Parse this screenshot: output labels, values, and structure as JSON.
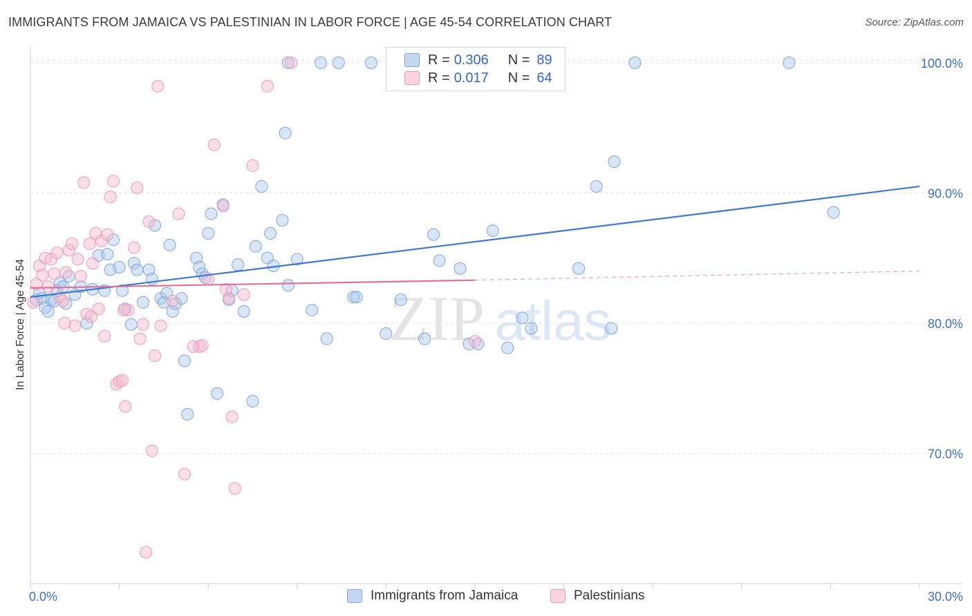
{
  "title": "IMMIGRANTS FROM JAMAICA VS PALESTINIAN IN LABOR FORCE | AGE 45-54 CORRELATION CHART",
  "source": "Source: ZipAtlas.com",
  "watermark": {
    "zip": "ZIP",
    "atlas": "atlas"
  },
  "legend": {
    "r_label": "R =",
    "n_label": "N =",
    "series": [
      {
        "name": "Immigrants from Jamaica",
        "r": "0.306",
        "n": "89",
        "fill": "#a9c7ef",
        "stroke": "#7fa6dd"
      },
      {
        "name": "Palestinians",
        "r": "0.017",
        "n": "64",
        "fill": "#f6b9cc",
        "stroke": "#ee9ab4"
      }
    ]
  },
  "chart_data": {
    "type": "scatter",
    "title": "IMMIGRANTS FROM JAMAICA VS PALESTINIAN IN LABOR FORCE | AGE 45-54 CORRELATION CHART",
    "xlabel": "",
    "ylabel": "In Labor Force | Age 45-54",
    "xlim": [
      0,
      30
    ],
    "ylim": [
      60,
      101
    ],
    "x_tick_labels": [
      "0.0%",
      "30.0%"
    ],
    "y_ticks": [
      70,
      80,
      90,
      100
    ],
    "y_tick_labels": [
      "70.0%",
      "80.0%",
      "90.0%",
      "100.0%"
    ],
    "grid": true,
    "series": [
      {
        "name": "Immigrants from Jamaica",
        "color": "#3a78d4",
        "trend": {
          "x": [
            0,
            30
          ],
          "y": [
            82.0,
            90.5
          ],
          "style": "solid"
        },
        "points": [
          [
            0.2,
            81.8
          ],
          [
            0.3,
            82.3
          ],
          [
            0.4,
            81.9
          ],
          [
            0.5,
            81.2
          ],
          [
            0.6,
            80.9
          ],
          [
            0.7,
            81.8
          ],
          [
            0.8,
            81.7
          ],
          [
            0.9,
            82.5
          ],
          [
            1.0,
            83.1
          ],
          [
            1.1,
            82.8
          ],
          [
            1.2,
            81.5
          ],
          [
            1.3,
            83.6
          ],
          [
            1.5,
            82.2
          ],
          [
            1.7,
            82.8
          ],
          [
            1.9,
            80.0
          ],
          [
            2.1,
            82.6
          ],
          [
            2.3,
            85.2
          ],
          [
            2.5,
            82.5
          ],
          [
            2.6,
            85.3
          ],
          [
            2.7,
            84.1
          ],
          [
            2.8,
            86.4
          ],
          [
            3.0,
            84.3
          ],
          [
            3.1,
            82.5
          ],
          [
            3.2,
            81.1
          ],
          [
            3.4,
            79.9
          ],
          [
            3.5,
            84.6
          ],
          [
            3.6,
            84.1
          ],
          [
            3.8,
            81.6
          ],
          [
            4.0,
            84.1
          ],
          [
            4.1,
            83.4
          ],
          [
            4.2,
            87.5
          ],
          [
            4.4,
            81.9
          ],
          [
            4.5,
            81.6
          ],
          [
            4.6,
            82.3
          ],
          [
            4.7,
            86.0
          ],
          [
            4.8,
            80.9
          ],
          [
            4.9,
            81.5
          ],
          [
            5.1,
            81.9
          ],
          [
            5.2,
            77.1
          ],
          [
            5.3,
            73.0
          ],
          [
            5.6,
            85.0
          ],
          [
            5.7,
            84.3
          ],
          [
            5.8,
            83.8
          ],
          [
            5.9,
            83.5
          ],
          [
            6.0,
            86.9
          ],
          [
            6.1,
            88.4
          ],
          [
            6.3,
            74.6
          ],
          [
            6.5,
            89.1
          ],
          [
            6.7,
            81.8
          ],
          [
            6.8,
            82.5
          ],
          [
            7.0,
            84.5
          ],
          [
            7.2,
            80.9
          ],
          [
            7.5,
            74.0
          ],
          [
            7.6,
            85.9
          ],
          [
            7.8,
            90.5
          ],
          [
            8.0,
            85.0
          ],
          [
            8.1,
            86.9
          ],
          [
            8.2,
            84.4
          ],
          [
            8.5,
            87.9
          ],
          [
            8.6,
            94.6
          ],
          [
            8.7,
            82.9
          ],
          [
            9.0,
            84.9
          ],
          [
            9.5,
            81.0
          ],
          [
            9.8,
            100.0
          ],
          [
            10.0,
            78.8
          ],
          [
            10.4,
            100.0
          ],
          [
            10.9,
            82.0
          ],
          [
            11.0,
            82.0
          ],
          [
            11.5,
            100.0
          ],
          [
            12.0,
            79.2
          ],
          [
            12.5,
            81.8
          ],
          [
            13.3,
            78.8
          ],
          [
            13.6,
            86.8
          ],
          [
            13.8,
            84.8
          ],
          [
            14.5,
            84.2
          ],
          [
            14.8,
            78.4
          ],
          [
            15.1,
            78.4
          ],
          [
            15.6,
            87.1
          ],
          [
            16.1,
            78.1
          ],
          [
            16.6,
            80.4
          ],
          [
            16.9,
            79.6
          ],
          [
            18.5,
            84.2
          ],
          [
            19.1,
            90.5
          ],
          [
            19.6,
            79.6
          ],
          [
            19.7,
            92.4
          ],
          [
            20.4,
            100.0
          ],
          [
            8.7,
            100.0
          ],
          [
            25.6,
            100.0
          ],
          [
            27.1,
            88.5
          ]
        ]
      },
      {
        "name": "Palestinians",
        "color": "#e0709a",
        "trend": {
          "x": [
            0,
            15
          ],
          "y": [
            82.7,
            83.3
          ],
          "style": "solid"
        },
        "trend_ext": {
          "x": [
            15,
            30
          ],
          "y": [
            83.3,
            84.0
          ],
          "style": "dashed"
        },
        "points": [
          [
            0.1,
            81.6
          ],
          [
            0.2,
            83.0
          ],
          [
            0.3,
            84.4
          ],
          [
            0.4,
            83.7
          ],
          [
            0.5,
            85.0
          ],
          [
            0.6,
            82.8
          ],
          [
            0.7,
            84.9
          ],
          [
            0.8,
            83.8
          ],
          [
            0.9,
            85.4
          ],
          [
            1.0,
            82.0
          ],
          [
            1.1,
            81.7
          ],
          [
            1.2,
            83.9
          ],
          [
            1.3,
            85.6
          ],
          [
            1.4,
            86.1
          ],
          [
            1.5,
            79.8
          ],
          [
            1.6,
            84.9
          ],
          [
            1.7,
            83.6
          ],
          [
            1.8,
            90.8
          ],
          [
            1.9,
            80.7
          ],
          [
            2.0,
            86.1
          ],
          [
            2.1,
            84.6
          ],
          [
            2.2,
            86.9
          ],
          [
            2.3,
            81.1
          ],
          [
            2.4,
            86.3
          ],
          [
            2.5,
            79.0
          ],
          [
            2.6,
            86.8
          ],
          [
            2.7,
            89.7
          ],
          [
            2.8,
            90.9
          ],
          [
            2.9,
            75.3
          ],
          [
            3.0,
            75.5
          ],
          [
            3.1,
            75.6
          ],
          [
            3.2,
            73.6
          ],
          [
            3.3,
            81.0
          ],
          [
            3.5,
            85.8
          ],
          [
            3.6,
            90.4
          ],
          [
            3.7,
            78.8
          ],
          [
            3.8,
            79.9
          ],
          [
            3.9,
            62.4
          ],
          [
            4.0,
            87.8
          ],
          [
            4.1,
            70.2
          ],
          [
            4.2,
            77.5
          ],
          [
            4.3,
            98.2
          ],
          [
            4.4,
            79.8
          ],
          [
            4.8,
            81.7
          ],
          [
            5.0,
            88.4
          ],
          [
            5.2,
            68.4
          ],
          [
            5.5,
            78.2
          ],
          [
            5.7,
            78.2
          ],
          [
            5.8,
            78.3
          ],
          [
            6.0,
            83.4
          ],
          [
            6.2,
            93.7
          ],
          [
            6.5,
            89.0
          ],
          [
            6.6,
            82.6
          ],
          [
            6.7,
            81.9
          ],
          [
            6.8,
            72.8
          ],
          [
            6.9,
            67.3
          ],
          [
            7.2,
            82.2
          ],
          [
            7.5,
            92.1
          ],
          [
            8.0,
            98.2
          ],
          [
            8.8,
            100.0
          ],
          [
            15.0,
            78.6
          ],
          [
            2.05,
            80.5
          ],
          [
            3.15,
            81.0
          ],
          [
            1.15,
            80.0
          ]
        ]
      }
    ]
  }
}
